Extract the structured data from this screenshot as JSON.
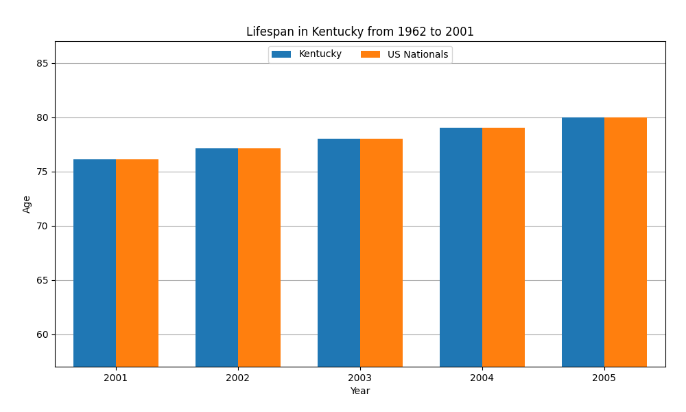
{
  "chart_data": {
    "type": "bar",
    "title": "Lifespan in Kentucky from 1962 to 2001",
    "x_label": "Year",
    "y_label": "Age",
    "categories": [
      "2001",
      "2002",
      "2003",
      "2004",
      "2005"
    ],
    "series": [
      {
        "name": "Kentucky",
        "values": [
          76.1,
          77.1,
          78.0,
          79.0,
          80.0
        ]
      },
      {
        "name": "US Nationals",
        "values": [
          76.1,
          77.1,
          78.0,
          79.0,
          80.0
        ]
      }
    ],
    "ylim": [
      57,
      87
    ],
    "yticks": [
      60,
      65,
      70,
      75,
      80,
      85
    ],
    "grid": true,
    "legend": "upper center"
  }
}
